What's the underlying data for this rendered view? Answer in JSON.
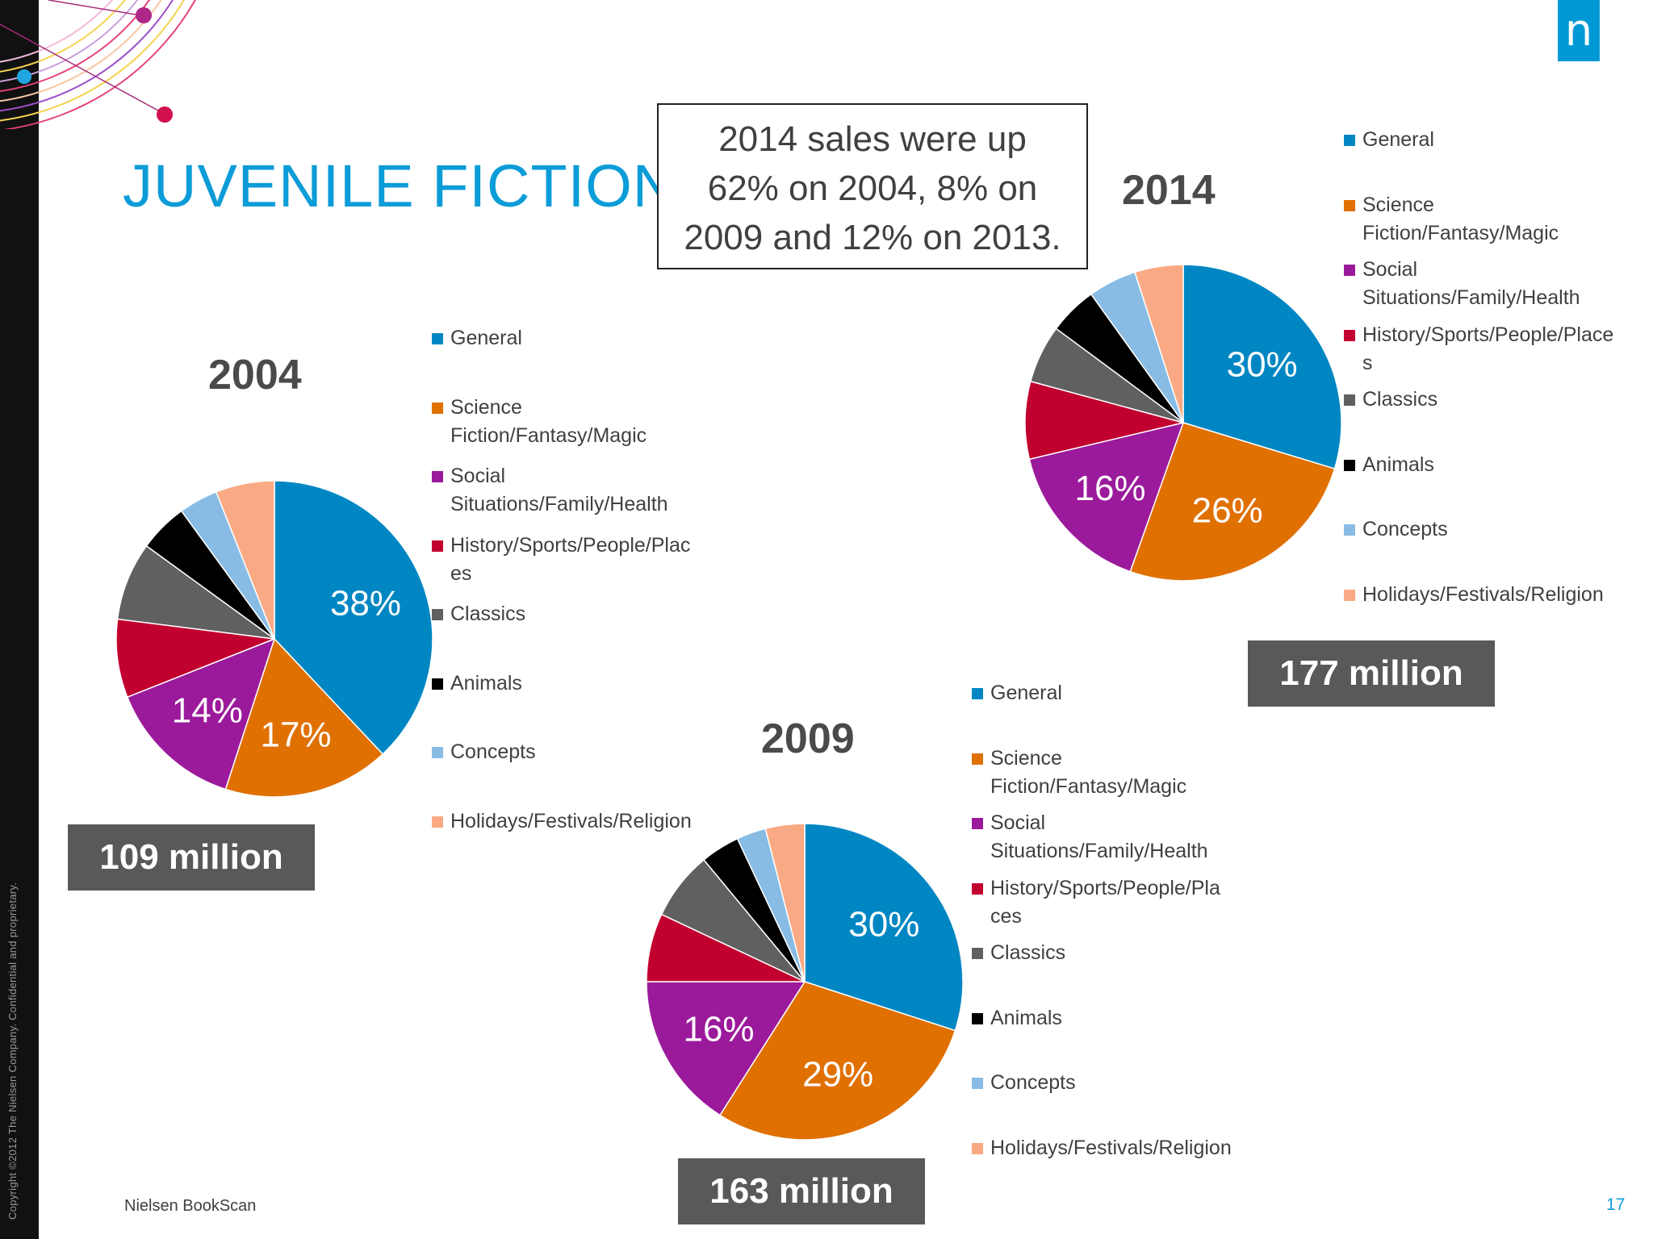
{
  "slide": {
    "title": "JUVENILE FICTION",
    "summary": "2014 sales were up\n62% on 2004, 8% on\n2009 and 12% on 2013.",
    "source": "Nielsen BookScan",
    "page_number": "17",
    "copyright": "Copyright ©2012 The Nielsen Company. Confidential and proprietary.",
    "logo_text": "n"
  },
  "colors": {
    "General": "#0087C3",
    "Science Fiction/Fantasy/Magic": "#E07000",
    "Social Situations/Family/Health": "#9B1A9B",
    "History/Sports/People/Places": "#C2002F",
    "Classics": "#606060",
    "Animals": "#000000",
    "Concepts": "#88BCE5",
    "Holidays/Festivals/Religion": "#F9AA84"
  },
  "chart_data": [
    {
      "type": "pie",
      "title": "2004",
      "total": "109 million",
      "categories": [
        "General",
        "Science Fiction/Fantasy/Magic",
        "Social Situations/Family/Health",
        "History/Sports/People/Places",
        "Classics",
        "Animals",
        "Concepts",
        "Holidays/Festivals/Religion"
      ],
      "legend_labels": [
        "General",
        "Science\nFiction/Fantasy/Magic",
        "Social\nSituations/Family/Health",
        "History/Sports/People/Plac\nes",
        "Classics",
        "Animals",
        "Concepts",
        "Holidays/Festivals/Religion"
      ],
      "values": [
        38,
        17,
        14,
        8,
        8,
        5,
        4,
        6
      ],
      "data_labels": [
        "38%",
        "17%",
        "14%",
        "",
        "",
        "",
        "",
        ""
      ]
    },
    {
      "type": "pie",
      "title": "2009",
      "total": "163 million",
      "categories": [
        "General",
        "Science Fiction/Fantasy/Magic",
        "Social Situations/Family/Health",
        "History/Sports/People/Places",
        "Classics",
        "Animals",
        "Concepts",
        "Holidays/Festivals/Religion"
      ],
      "legend_labels": [
        "General",
        "Science\nFiction/Fantasy/Magic",
        "Social\nSituations/Family/Health",
        "History/Sports/People/Pla\nces",
        "Classics",
        "Animals",
        "Concepts",
        "Holidays/Festivals/Religion"
      ],
      "values": [
        30,
        29,
        16,
        7,
        7,
        4,
        3,
        4
      ],
      "data_labels": [
        "30%",
        "29%",
        "16%",
        "",
        "",
        "",
        "",
        ""
      ]
    },
    {
      "type": "pie",
      "title": "2014",
      "total": "177 million",
      "categories": [
        "General",
        "Science Fiction/Fantasy/Magic",
        "Social Situations/Family/Health",
        "History/Sports/People/Places",
        "Classics",
        "Animals",
        "Concepts",
        "Holidays/Festivals/Religion"
      ],
      "legend_labels": [
        "General",
        "Science\nFiction/Fantasy/Magic",
        "Social\nSituations/Family/Health",
        "History/Sports/People/Place\ns",
        "Classics",
        "Animals",
        "Concepts",
        "Holidays/Festivals/Religion"
      ],
      "values": [
        30,
        26,
        16,
        8,
        6,
        5,
        5,
        5
      ],
      "data_labels": [
        "30%",
        "26%",
        "16%",
        "",
        "",
        "",
        "",
        ""
      ]
    }
  ]
}
